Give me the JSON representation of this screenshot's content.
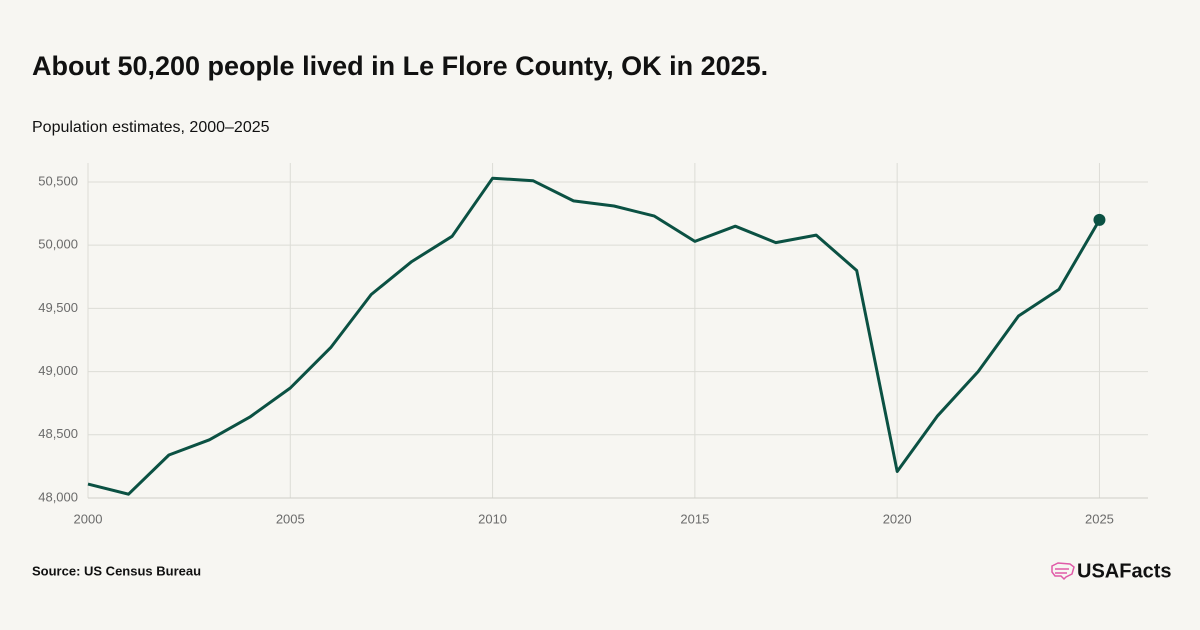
{
  "chart_data": {
    "type": "line",
    "title": "About 50,200 people lived in Le Flore County, OK in 2025.",
    "subtitle": "Population estimates, 2000–2025",
    "source": "Source: US Census Bureau",
    "brand": "USAFacts",
    "x": [
      2000,
      2001,
      2002,
      2003,
      2004,
      2005,
      2006,
      2007,
      2008,
      2009,
      2010,
      2011,
      2012,
      2013,
      2014,
      2015,
      2016,
      2017,
      2018,
      2019,
      2020,
      2021,
      2022,
      2023,
      2024,
      2025
    ],
    "values": [
      48110,
      48030,
      48340,
      48460,
      48640,
      48870,
      49190,
      49610,
      49870,
      50070,
      50530,
      50510,
      50350,
      50310,
      50230,
      50030,
      50150,
      50020,
      50080,
      49800,
      48210,
      48650,
      49000,
      49440,
      49650,
      50200
    ],
    "color": "#0b5143",
    "xlim": [
      2000,
      2026.2
    ],
    "ylim": [
      48000,
      50650
    ],
    "xticks": [
      2000,
      2005,
      2010,
      2015,
      2020,
      2025
    ],
    "yticks": [
      {
        "value": 48000,
        "label": "48,000"
      },
      {
        "value": 48500,
        "label": "48,500"
      },
      {
        "value": 49000,
        "label": "49,000"
      },
      {
        "value": 49500,
        "label": "49,500"
      },
      {
        "value": 50000,
        "label": "50,000"
      },
      {
        "value": 50500,
        "label": "50,500"
      }
    ],
    "grid": true
  }
}
